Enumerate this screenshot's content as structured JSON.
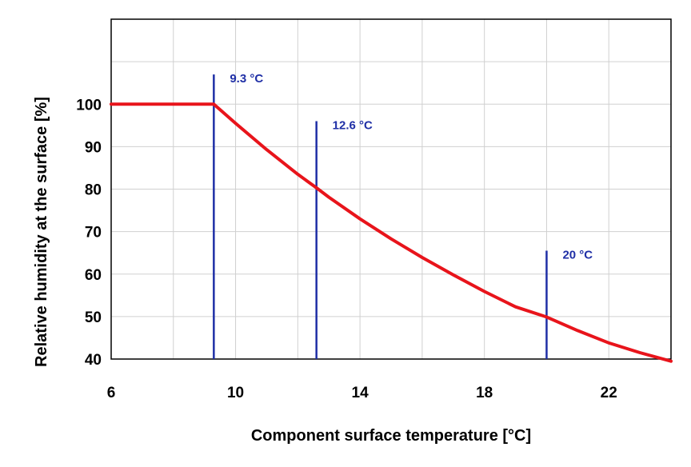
{
  "chart_data": {
    "type": "line",
    "title": "",
    "xlabel": "Component surface temperature [°C]",
    "ylabel": "Relative humidity at the surface [%]",
    "xlim": [
      6,
      24
    ],
    "ylim": [
      40,
      120
    ],
    "x_ticks": [
      6,
      10,
      14,
      18,
      22
    ],
    "y_ticks": [
      40,
      50,
      60,
      70,
      80,
      90,
      100
    ],
    "grid": true,
    "colors": {
      "curve": "#e8141b",
      "markers": "#1f2fa6",
      "grid": "#d0d0d0"
    },
    "series": [
      {
        "x": [
          6,
          9.3,
          10,
          11,
          12,
          12.6,
          13,
          14,
          15,
          16,
          17,
          18,
          19,
          20,
          21,
          22,
          23,
          24
        ],
        "y": [
          100,
          100,
          95.5,
          89.3,
          83.5,
          80.3,
          78.1,
          73,
          68.3,
          63.9,
          59.8,
          55.9,
          52.3,
          49.9,
          46.7,
          43.8,
          41.5,
          39.5
        ]
      }
    ],
    "markers": [
      {
        "x": 9.3,
        "top": 107,
        "label": "9.3 °C"
      },
      {
        "x": 12.6,
        "top": 96,
        "label": "12.6 °C"
      },
      {
        "x": 20,
        "top": 65.5,
        "label": "20 °C"
      }
    ]
  }
}
